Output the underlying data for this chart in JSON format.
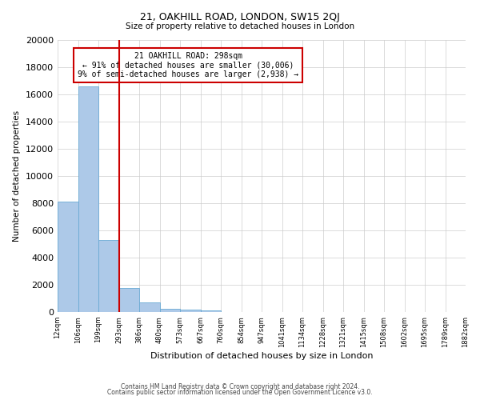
{
  "title_line1": "21, OAKHILL ROAD, LONDON, SW15 2QJ",
  "title_line2": "Size of property relative to detached houses in London",
  "xlabel": "Distribution of detached houses by size in London",
  "ylabel": "Number of detached properties",
  "bar_values": [
    8100,
    16600,
    5300,
    1750,
    700,
    250,
    200,
    100,
    0,
    0,
    0,
    0,
    0,
    0,
    0,
    0,
    0,
    0,
    0
  ],
  "bin_labels": [
    "12sqm",
    "106sqm",
    "199sqm",
    "293sqm",
    "386sqm",
    "480sqm",
    "573sqm",
    "667sqm",
    "760sqm",
    "854sqm",
    "947sqm",
    "1041sqm",
    "1134sqm",
    "1228sqm",
    "1321sqm",
    "1415sqm",
    "1508sqm",
    "1602sqm",
    "1695sqm",
    "1789sqm",
    "1882sqm"
  ],
  "ylim": [
    0,
    20000
  ],
  "yticks": [
    0,
    2000,
    4000,
    6000,
    8000,
    10000,
    12000,
    14000,
    16000,
    18000,
    20000
  ],
  "bar_color": "#adc9e8",
  "bar_edge_color": "#6aaad4",
  "vline_x": 2.5,
  "vline_color": "#cc0000",
  "annotation_title": "21 OAKHILL ROAD: 298sqm",
  "annotation_line1": "← 91% of detached houses are smaller (30,006)",
  "annotation_line2": "9% of semi-detached houses are larger (2,938) →",
  "annotation_box_color": "#ffffff",
  "annotation_box_edge": "#cc0000",
  "footer_line1": "Contains HM Land Registry data © Crown copyright and database right 2024.",
  "footer_line2": "Contains public sector information licensed under the Open Government Licence v3.0.",
  "background_color": "#ffffff",
  "grid_color": "#cccccc"
}
